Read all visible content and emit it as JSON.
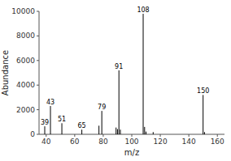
{
  "chart_data": {
    "type": "stem",
    "xlabel": "m/z",
    "ylabel": "Abundance",
    "x": [
      39,
      43,
      51,
      65,
      77,
      79,
      89,
      90,
      91,
      92,
      108,
      109,
      110,
      115,
      150,
      151
    ],
    "values": [
      650,
      2300,
      900,
      380,
      700,
      1900,
      550,
      420,
      5200,
      380,
      9800,
      600,
      220,
      180,
      3200,
      180
    ],
    "labels": [
      "39",
      "43",
      "51",
      "65",
      null,
      "79",
      null,
      null,
      "91",
      null,
      "108",
      null,
      null,
      null,
      "150",
      null
    ],
    "color": "#000000",
    "xlim": [
      35,
      165
    ],
    "ylim": [
      0,
      10000
    ],
    "xticks": [
      40,
      60,
      80,
      100,
      120,
      140,
      160
    ],
    "yticks": [
      0,
      2000,
      4000,
      6000,
      8000,
      10000
    ]
  }
}
